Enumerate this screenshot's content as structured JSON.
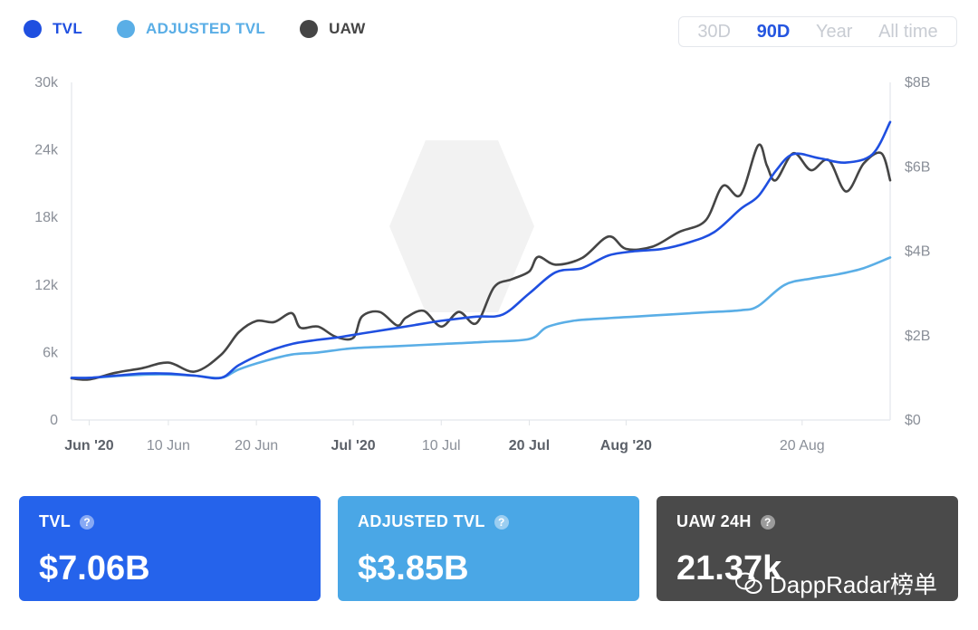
{
  "legend": [
    {
      "label": "TVL",
      "color": "#1f4fe0"
    },
    {
      "label": "ADJUSTED TVL",
      "color": "#5aaee6"
    },
    {
      "label": "UAW",
      "color": "#454545"
    }
  ],
  "range_buttons": [
    {
      "label": "30D",
      "active": false
    },
    {
      "label": "90D",
      "active": true
    },
    {
      "label": "Year",
      "active": false
    },
    {
      "label": "All time",
      "active": false
    }
  ],
  "chart_data": {
    "type": "line",
    "x_tick_labels": [
      "Jun '20",
      "10 Jun",
      "20 Jun",
      "Jul '20",
      "10 Jul",
      "20 Jul",
      "Aug '20",
      "20 Aug"
    ],
    "x_tick_bold": [
      true,
      false,
      false,
      true,
      false,
      true,
      true,
      false
    ],
    "x_tick_days": [
      0,
      9,
      19,
      30,
      40,
      50,
      61,
      81
    ],
    "y_left_ticks": [
      "0",
      "6k",
      "12k",
      "18k",
      "24k",
      "30k"
    ],
    "y_left_range": [
      0,
      30000
    ],
    "y_right_ticks": [
      "$0",
      "$2B",
      "$4B",
      "$6B",
      "$8B"
    ],
    "y_right_range": [
      0,
      8
    ],
    "series": [
      {
        "name": "TVL",
        "axis": "right",
        "unit": "$B",
        "color": "#1f4fe0",
        "x": [
          -2,
          0,
          3,
          6,
          9,
          12,
          15,
          17,
          20,
          23,
          26,
          28,
          31,
          34,
          37,
          40,
          44,
          47,
          50,
          53,
          56,
          59,
          62,
          65,
          68,
          71,
          74,
          76,
          78,
          80,
          83,
          86,
          89,
          91
        ],
        "y": [
          1.0,
          1.0,
          1.05,
          1.1,
          1.1,
          1.05,
          1.0,
          1.3,
          1.6,
          1.8,
          1.9,
          1.95,
          2.05,
          2.15,
          2.25,
          2.35,
          2.45,
          2.5,
          3.0,
          3.5,
          3.6,
          3.9,
          4.0,
          4.05,
          4.2,
          4.45,
          5.0,
          5.3,
          5.9,
          6.3,
          6.2,
          6.1,
          6.3,
          7.06
        ]
      },
      {
        "name": "ADJUSTED TVL",
        "axis": "right",
        "unit": "$B",
        "color": "#5aaee6",
        "x": [
          -2,
          0,
          4,
          8,
          12,
          15,
          17,
          20,
          23,
          26,
          30,
          35,
          40,
          45,
          50,
          52,
          55,
          58,
          62,
          66,
          70,
          74,
          76,
          79,
          82,
          85,
          88,
          91
        ],
        "y": [
          1.0,
          1.0,
          1.05,
          1.08,
          1.05,
          1.0,
          1.2,
          1.4,
          1.55,
          1.6,
          1.7,
          1.75,
          1.8,
          1.85,
          1.92,
          2.2,
          2.35,
          2.4,
          2.45,
          2.5,
          2.55,
          2.6,
          2.7,
          3.2,
          3.35,
          3.45,
          3.6,
          3.85
        ]
      },
      {
        "name": "UAW",
        "axis": "left",
        "unit": "users",
        "color": "#454545",
        "x": [
          -2,
          0,
          3,
          6,
          9,
          12,
          15,
          17,
          19,
          21,
          23,
          24,
          26,
          28,
          30,
          31,
          33,
          35,
          36,
          38,
          40,
          42,
          44,
          46,
          48,
          50,
          51,
          53,
          56,
          59,
          61,
          64,
          67,
          70,
          72,
          74,
          76,
          77,
          78,
          80,
          82,
          84,
          86,
          88,
          90,
          91
        ],
        "y": [
          3700,
          3600,
          4200,
          4600,
          5100,
          4300,
          5800,
          7800,
          8800,
          8700,
          9500,
          8200,
          8300,
          7400,
          7300,
          9200,
          9600,
          8400,
          9100,
          9700,
          8300,
          9600,
          8600,
          11800,
          12500,
          13200,
          14500,
          13800,
          14400,
          16300,
          15200,
          15400,
          16700,
          17700,
          20800,
          20000,
          24400,
          22600,
          21300,
          23700,
          22200,
          23100,
          20300,
          22800,
          23700,
          21300
        ]
      }
    ],
    "grid": false
  },
  "cards": [
    {
      "title": "TVL",
      "value": "$7.06B",
      "bg": "#2563eb"
    },
    {
      "title": "ADJUSTED TVL",
      "value": "$3.85B",
      "bg": "#4aa7e6"
    },
    {
      "title": "UAW 24H",
      "value": "21.37k",
      "bg": "#4a4a4a"
    }
  ],
  "watermark": {
    "text": "DappRadar榜单"
  }
}
